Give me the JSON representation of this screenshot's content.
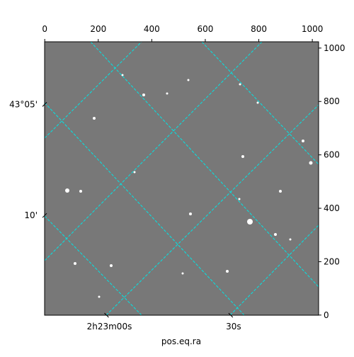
{
  "chart_data": {
    "type": "image",
    "xlabel": "pos.eq.ra",
    "xlim": [
      -0.5,
      1023.5
    ],
    "ylim": [
      -0.5,
      1023.5
    ],
    "xticks": [
      0,
      200,
      400,
      600,
      800,
      1000
    ],
    "yticks": [
      0,
      200,
      400,
      600,
      800,
      1000
    ],
    "ra_ticks": [
      {
        "value": 231,
        "label": "2h23m00s"
      },
      {
        "value": 695,
        "label": "30s"
      }
    ],
    "dec_ticks": [
      {
        "value": 789,
        "label": "43°05'"
      },
      {
        "value": 373,
        "label": "10'"
      }
    ]
  }
}
